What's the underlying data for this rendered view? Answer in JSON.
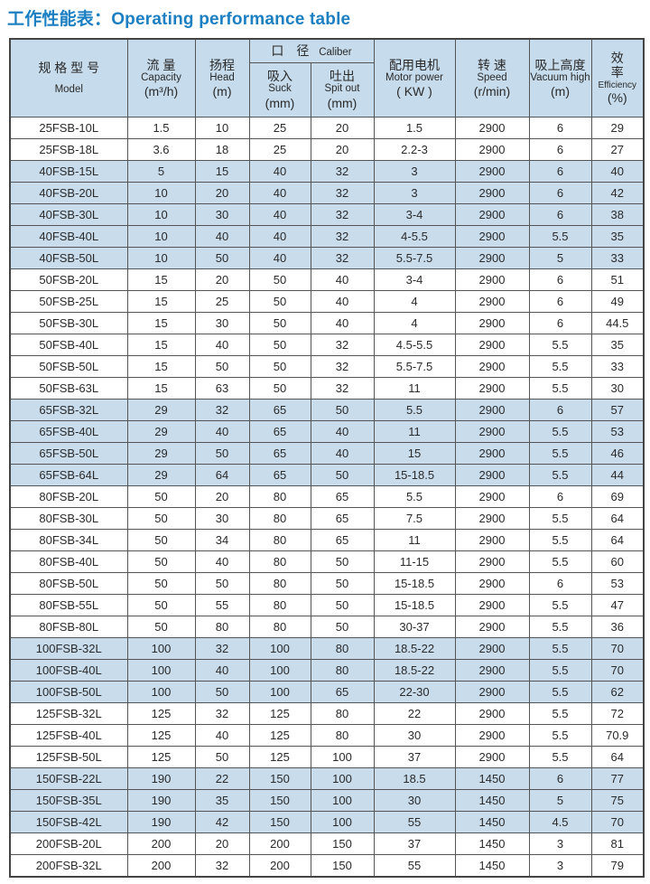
{
  "title": "工作性能表：Operating performance table",
  "header": {
    "model": {
      "cn": "规 格 型 号",
      "en": "Model"
    },
    "capacity": {
      "cn": "流 量",
      "en": "Capacity",
      "unit": "(m³/h)"
    },
    "head": {
      "cn": "扬程",
      "en": "Head",
      "unit": "(m)"
    },
    "caliber": {
      "cn": "口　径",
      "en": "Caliber"
    },
    "suck": {
      "cn": "吸入",
      "en": "Suck",
      "unit": "(mm)"
    },
    "spit": {
      "cn": "吐出",
      "en": "Spit out",
      "unit": "(mm)"
    },
    "motor": {
      "cn": "配用电机",
      "en": "Motor power",
      "unit": "( KW )"
    },
    "speed": {
      "cn": "转 速",
      "en": "Speed",
      "unit": "(r/min)"
    },
    "vacuum": {
      "cn": "吸上高度",
      "en": "Vacuum high",
      "unit": "(m)"
    },
    "efficiency": {
      "cn": "效率",
      "en": "Efficiency",
      "unit": "(%)"
    }
  },
  "row_highlight_color": "#c9dcec",
  "rows": [
    {
      "cells": [
        "25FSB-10L",
        "1.5",
        "10",
        "25",
        "20",
        "1.5",
        "2900",
        "6",
        "29"
      ],
      "highlighted": false
    },
    {
      "cells": [
        "25FSB-18L",
        "3.6",
        "18",
        "25",
        "20",
        "2.2-3",
        "2900",
        "6",
        "27"
      ],
      "highlighted": false
    },
    {
      "cells": [
        "40FSB-15L",
        "5",
        "15",
        "40",
        "32",
        "3",
        "2900",
        "6",
        "40"
      ],
      "highlighted": true
    },
    {
      "cells": [
        "40FSB-20L",
        "10",
        "20",
        "40",
        "32",
        "3",
        "2900",
        "6",
        "42"
      ],
      "highlighted": true
    },
    {
      "cells": [
        "40FSB-30L",
        "10",
        "30",
        "40",
        "32",
        "3-4",
        "2900",
        "6",
        "38"
      ],
      "highlighted": true
    },
    {
      "cells": [
        "40FSB-40L",
        "10",
        "40",
        "40",
        "32",
        "4-5.5",
        "2900",
        "5.5",
        "35"
      ],
      "highlighted": true
    },
    {
      "cells": [
        "40FSB-50L",
        "10",
        "50",
        "40",
        "32",
        "5.5-7.5",
        "2900",
        "5",
        "33"
      ],
      "highlighted": true
    },
    {
      "cells": [
        "50FSB-20L",
        "15",
        "20",
        "50",
        "40",
        "3-4",
        "2900",
        "6",
        "51"
      ],
      "highlighted": false
    },
    {
      "cells": [
        "50FSB-25L",
        "15",
        "25",
        "50",
        "40",
        "4",
        "2900",
        "6",
        "49"
      ],
      "highlighted": false
    },
    {
      "cells": [
        "50FSB-30L",
        "15",
        "30",
        "50",
        "40",
        "4",
        "2900",
        "6",
        "44.5"
      ],
      "highlighted": false
    },
    {
      "cells": [
        "50FSB-40L",
        "15",
        "40",
        "50",
        "32",
        "4.5-5.5",
        "2900",
        "5.5",
        "35"
      ],
      "highlighted": false
    },
    {
      "cells": [
        "50FSB-50L",
        "15",
        "50",
        "50",
        "32",
        "5.5-7.5",
        "2900",
        "5.5",
        "33"
      ],
      "highlighted": false
    },
    {
      "cells": [
        "50FSB-63L",
        "15",
        "63",
        "50",
        "32",
        "11",
        "2900",
        "5.5",
        "30"
      ],
      "highlighted": false
    },
    {
      "cells": [
        "65FSB-32L",
        "29",
        "32",
        "65",
        "50",
        "5.5",
        "2900",
        "6",
        "57"
      ],
      "highlighted": true
    },
    {
      "cells": [
        "65FSB-40L",
        "29",
        "40",
        "65",
        "40",
        "11",
        "2900",
        "5.5",
        "53"
      ],
      "highlighted": true
    },
    {
      "cells": [
        "65FSB-50L",
        "29",
        "50",
        "65",
        "40",
        "15",
        "2900",
        "5.5",
        "46"
      ],
      "highlighted": true
    },
    {
      "cells": [
        "65FSB-64L",
        "29",
        "64",
        "65",
        "50",
        "15-18.5",
        "2900",
        "5.5",
        "44"
      ],
      "highlighted": true
    },
    {
      "cells": [
        "80FSB-20L",
        "50",
        "20",
        "80",
        "65",
        "5.5",
        "2900",
        "6",
        "69"
      ],
      "highlighted": false
    },
    {
      "cells": [
        "80FSB-30L",
        "50",
        "30",
        "80",
        "65",
        "7.5",
        "2900",
        "5.5",
        "64"
      ],
      "highlighted": false
    },
    {
      "cells": [
        "80FSB-34L",
        "50",
        "34",
        "80",
        "65",
        "11",
        "2900",
        "5.5",
        "64"
      ],
      "highlighted": false
    },
    {
      "cells": [
        "80FSB-40L",
        "50",
        "40",
        "80",
        "50",
        "11-15",
        "2900",
        "5.5",
        "60"
      ],
      "highlighted": false
    },
    {
      "cells": [
        "80FSB-50L",
        "50",
        "50",
        "80",
        "50",
        "15-18.5",
        "2900",
        "6",
        "53"
      ],
      "highlighted": false
    },
    {
      "cells": [
        "80FSB-55L",
        "50",
        "55",
        "80",
        "50",
        "15-18.5",
        "2900",
        "5.5",
        "47"
      ],
      "highlighted": false
    },
    {
      "cells": [
        "80FSB-80L",
        "50",
        "80",
        "80",
        "50",
        "30-37",
        "2900",
        "5.5",
        "36"
      ],
      "highlighted": false
    },
    {
      "cells": [
        "100FSB-32L",
        "100",
        "32",
        "100",
        "80",
        "18.5-22",
        "2900",
        "5.5",
        "70"
      ],
      "highlighted": true
    },
    {
      "cells": [
        "100FSB-40L",
        "100",
        "40",
        "100",
        "80",
        "18.5-22",
        "2900",
        "5.5",
        "70"
      ],
      "highlighted": true
    },
    {
      "cells": [
        "100FSB-50L",
        "100",
        "50",
        "100",
        "65",
        "22-30",
        "2900",
        "5.5",
        "62"
      ],
      "highlighted": true
    },
    {
      "cells": [
        "125FSB-32L",
        "125",
        "32",
        "125",
        "80",
        "22",
        "2900",
        "5.5",
        "72"
      ],
      "highlighted": false
    },
    {
      "cells": [
        "125FSB-40L",
        "125",
        "40",
        "125",
        "80",
        "30",
        "2900",
        "5.5",
        "70.9"
      ],
      "highlighted": false
    },
    {
      "cells": [
        "125FSB-50L",
        "125",
        "50",
        "125",
        "100",
        "37",
        "2900",
        "5.5",
        "64"
      ],
      "highlighted": false
    },
    {
      "cells": [
        "150FSB-22L",
        "190",
        "22",
        "150",
        "100",
        "18.5",
        "1450",
        "6",
        "77"
      ],
      "highlighted": true
    },
    {
      "cells": [
        "150FSB-35L",
        "190",
        "35",
        "150",
        "100",
        "30",
        "1450",
        "5",
        "75"
      ],
      "highlighted": true
    },
    {
      "cells": [
        "150FSB-42L",
        "190",
        "42",
        "150",
        "100",
        "55",
        "1450",
        "4.5",
        "70"
      ],
      "highlighted": true
    },
    {
      "cells": [
        "200FSB-20L",
        "200",
        "20",
        "200",
        "150",
        "37",
        "1450",
        "3",
        "81"
      ],
      "highlighted": false
    },
    {
      "cells": [
        "200FSB-32L",
        "200",
        "32",
        "200",
        "150",
        "55",
        "1450",
        "3",
        "79"
      ],
      "highlighted": false
    }
  ]
}
